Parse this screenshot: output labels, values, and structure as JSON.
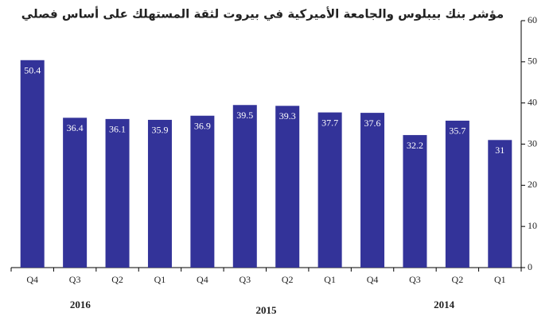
{
  "chart_data": {
    "type": "bar",
    "title": "مؤشر بنك بيبلوس والجامعة الأميركية في بيروت لثقة المستهلك على أساس فصلي",
    "categories": [
      "Q4",
      "Q3",
      "Q2",
      "Q1",
      "Q4",
      "Q3",
      "Q2",
      "Q1",
      "Q4",
      "Q3",
      "Q2",
      "Q1"
    ],
    "groups": [
      "2016",
      "2015",
      "2014"
    ],
    "values": [
      50.4,
      36.4,
      36.1,
      35.9,
      36.9,
      39.5,
      39.3,
      37.7,
      37.6,
      32.2,
      35.7,
      31
    ],
    "color": "#333399",
    "ylim": [
      0,
      60
    ],
    "yticks": [
      0,
      10,
      20,
      30,
      40,
      50,
      60
    ],
    "grid": false
  }
}
